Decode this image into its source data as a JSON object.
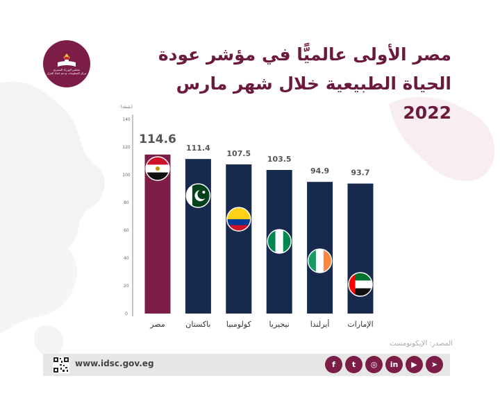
{
  "title": "مصر الأولى عالميًّا في مؤشر عودة الحياة الطبيعية خلال شهر مارس 2022",
  "logo": {
    "line1": "مجلس الوزراء المصري",
    "line2": "مركز المعلومات ودعم اتخاذ القرار"
  },
  "chart_data": {
    "type": "bar",
    "title": "مصر الأولى عالميًّا في مؤشر عودة الحياة الطبيعية خلال شهر مارس 2022",
    "ylabel": "(نقطة)",
    "xlabel": "",
    "ylim": [
      0,
      140
    ],
    "yticks": [
      0,
      20,
      40,
      60,
      80,
      100,
      120,
      140
    ],
    "categories": [
      "مصر",
      "باكستان",
      "كولومبيا",
      "نيجيريا",
      "أيرلندا",
      "الإمارات"
    ],
    "values": [
      114.6,
      111.4,
      107.5,
      103.5,
      94.9,
      93.7
    ],
    "value_labels": [
      "114.6",
      "111.4",
      "107.5",
      "103.5",
      "94.9",
      "93.7"
    ],
    "flags": [
      "egypt-flag",
      "pakistan-flag",
      "colombia-flag",
      "nigeria-flag",
      "ireland-flag",
      "uae-flag"
    ],
    "colors": {
      "highlight": "#7b1d46",
      "default": "#17294d"
    },
    "grid": false,
    "legend": "none"
  },
  "source": "المصدر: الإيكونومست",
  "footer": {
    "url": "www.idsc.gov.eg",
    "socials": [
      "telegram-icon",
      "youtube-icon",
      "linkedin-icon",
      "instagram-icon",
      "twitter-icon",
      "facebook-icon"
    ],
    "social_glyphs": [
      "➤",
      "▶",
      "in",
      "◎",
      "t",
      "f"
    ]
  }
}
